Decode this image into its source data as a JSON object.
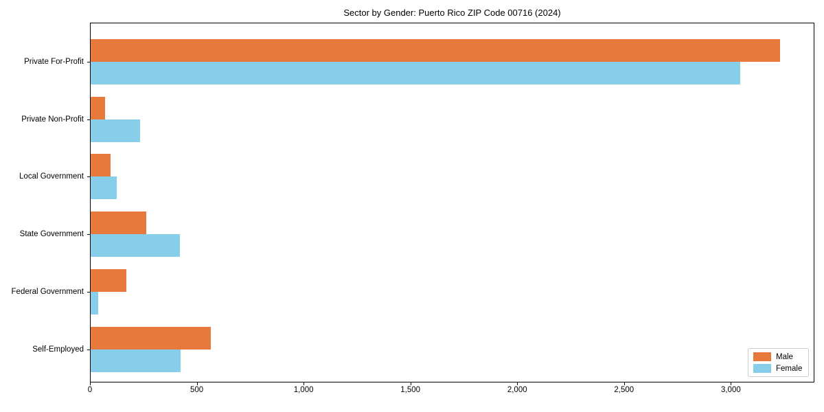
{
  "chart_data": {
    "type": "bar",
    "orientation": "horizontal",
    "title": "Sector by Gender: Puerto Rico ZIP Code 00716 (2024)",
    "categories": [
      "Private For-Profit",
      "Private Non-Profit",
      "Local Government",
      "State Government",
      "Federal Government",
      "Self-Employed"
    ],
    "category_order": "top-to-bottom",
    "series": [
      {
        "name": "Male",
        "color": "#E8793D",
        "values": [
          3227,
          66,
          93,
          259,
          168,
          563
        ]
      },
      {
        "name": "Female",
        "color": "#87CEEB",
        "values": [
          3042,
          232,
          123,
          418,
          34,
          421
        ]
      }
    ],
    "xlabel": "",
    "ylabel": "",
    "xlim": [
      0,
      3391
    ],
    "xticks": {
      "values": [
        0,
        500,
        1000,
        1500,
        2000,
        2500,
        3000
      ],
      "labels": [
        "0",
        "500",
        "1,000",
        "1,500",
        "2,000",
        "2,500",
        "3,000"
      ]
    },
    "grid": false,
    "legend": {
      "position": "lower right",
      "entries": [
        "Male",
        "Female"
      ]
    },
    "colors": {
      "male": "#E8793D",
      "female": "#87CEEB",
      "spine": "#000000",
      "text": "#000000",
      "legend_border": "#cccccc"
    }
  }
}
